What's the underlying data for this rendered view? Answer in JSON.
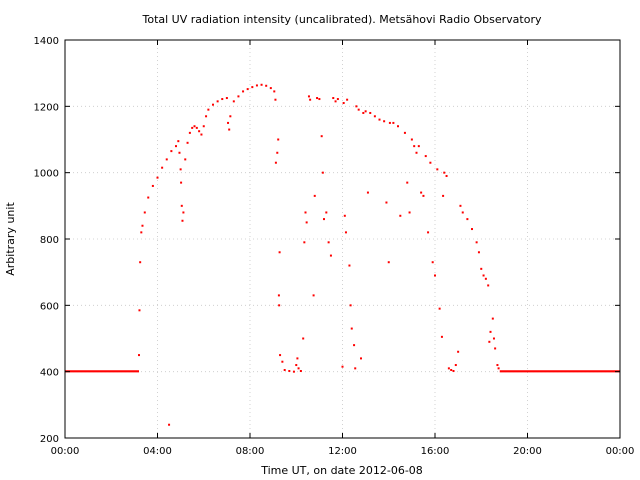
{
  "chart_data": {
    "type": "scatter",
    "title": "Total UV radiation intensity (uncalibrated). Metsähovi Radio Observatory",
    "xlabel": "Time UT, on date 2012-06-08",
    "ylabel": "Arbitrary unit",
    "xlim": [
      0,
      24
    ],
    "ylim": [
      200,
      1400
    ],
    "x_unit": "hours UT",
    "x_ticks": [
      0,
      4,
      8,
      12,
      16,
      20,
      24
    ],
    "x_tick_labels": [
      "00:00",
      "04:00",
      "08:00",
      "12:00",
      "16:00",
      "20:00",
      "00:00"
    ],
    "y_ticks": [
      200,
      400,
      600,
      800,
      1000,
      1200,
      1400
    ],
    "y_tick_labels": [
      "200",
      "400",
      "600",
      "800",
      "1000",
      "1200",
      "1400"
    ],
    "grid": true,
    "color": "#ff0000",
    "series": [
      {
        "points": [
          [
            3.2,
            450
          ],
          [
            3.22,
            585
          ],
          [
            3.25,
            730
          ],
          [
            3.3,
            820
          ],
          [
            3.35,
            840
          ],
          [
            3.45,
            880
          ],
          [
            3.6,
            925
          ],
          [
            3.8,
            960
          ],
          [
            4.0,
            985
          ],
          [
            4.2,
            1015
          ],
          [
            4.4,
            1040
          ],
          [
            4.6,
            1065
          ],
          [
            4.8,
            1080
          ],
          [
            4.9,
            1095
          ],
          [
            4.95,
            1060
          ],
          [
            5.0,
            1010
          ],
          [
            5.02,
            970
          ],
          [
            5.05,
            900
          ],
          [
            5.08,
            855
          ],
          [
            5.12,
            880
          ],
          [
            5.2,
            1040
          ],
          [
            5.3,
            1090
          ],
          [
            5.4,
            1120
          ],
          [
            5.5,
            1135
          ],
          [
            5.6,
            1140
          ],
          [
            5.7,
            1135
          ],
          [
            5.8,
            1125
          ],
          [
            5.9,
            1115
          ],
          [
            6.0,
            1140
          ],
          [
            6.1,
            1170
          ],
          [
            6.2,
            1190
          ],
          [
            6.4,
            1205
          ],
          [
            6.6,
            1215
          ],
          [
            6.8,
            1222
          ],
          [
            7.0,
            1225
          ],
          [
            7.05,
            1150
          ],
          [
            7.1,
            1130
          ],
          [
            7.15,
            1170
          ],
          [
            7.3,
            1215
          ],
          [
            7.5,
            1230
          ],
          [
            7.7,
            1245
          ],
          [
            7.9,
            1252
          ],
          [
            8.1,
            1258
          ],
          [
            8.3,
            1263
          ],
          [
            8.5,
            1265
          ],
          [
            8.7,
            1262
          ],
          [
            8.9,
            1255
          ],
          [
            9.05,
            1245
          ],
          [
            9.1,
            1220
          ],
          [
            9.12,
            1030
          ],
          [
            9.18,
            1060
          ],
          [
            9.22,
            1100
          ],
          [
            9.28,
            760
          ],
          [
            9.25,
            630
          ],
          [
            9.26,
            600
          ],
          [
            9.3,
            450
          ],
          [
            9.4,
            430
          ],
          [
            9.5,
            405
          ],
          [
            9.7,
            402
          ],
          [
            9.9,
            400
          ],
          [
            10.0,
            420
          ],
          [
            10.05,
            440
          ],
          [
            10.1,
            410
          ],
          [
            10.2,
            402
          ],
          [
            10.3,
            500
          ],
          [
            10.35,
            790
          ],
          [
            10.4,
            880
          ],
          [
            10.45,
            850
          ],
          [
            10.55,
            1230
          ],
          [
            10.6,
            1220
          ],
          [
            10.75,
            630
          ],
          [
            10.8,
            930
          ],
          [
            10.9,
            1225
          ],
          [
            11.0,
            1222
          ],
          [
            11.1,
            1110
          ],
          [
            11.15,
            1000
          ],
          [
            11.2,
            860
          ],
          [
            11.3,
            880
          ],
          [
            11.4,
            790
          ],
          [
            11.5,
            750
          ],
          [
            11.6,
            1225
          ],
          [
            11.7,
            1215
          ],
          [
            11.8,
            1222
          ],
          [
            12.0,
            415
          ],
          [
            12.05,
            1210
          ],
          [
            12.1,
            870
          ],
          [
            12.15,
            820
          ],
          [
            12.2,
            1220
          ],
          [
            12.3,
            720
          ],
          [
            12.35,
            600
          ],
          [
            12.4,
            530
          ],
          [
            12.5,
            480
          ],
          [
            12.55,
            410
          ],
          [
            12.6,
            1200
          ],
          [
            12.7,
            1190
          ],
          [
            12.8,
            440
          ],
          [
            12.9,
            1180
          ],
          [
            13.0,
            1185
          ],
          [
            13.1,
            940
          ],
          [
            13.2,
            1180
          ],
          [
            13.4,
            1170
          ],
          [
            13.6,
            1160
          ],
          [
            13.8,
            1155
          ],
          [
            13.9,
            910
          ],
          [
            14.0,
            730
          ],
          [
            14.05,
            1150
          ],
          [
            14.2,
            1150
          ],
          [
            14.4,
            1140
          ],
          [
            14.5,
            870
          ],
          [
            14.7,
            1120
          ],
          [
            14.8,
            970
          ],
          [
            14.9,
            880
          ],
          [
            15.0,
            1100
          ],
          [
            15.1,
            1080
          ],
          [
            15.2,
            1060
          ],
          [
            15.3,
            1080
          ],
          [
            15.4,
            940
          ],
          [
            15.5,
            930
          ],
          [
            15.6,
            1050
          ],
          [
            15.7,
            820
          ],
          [
            15.8,
            1030
          ],
          [
            15.9,
            730
          ],
          [
            16.0,
            690
          ],
          [
            16.1,
            1010
          ],
          [
            16.2,
            590
          ],
          [
            16.3,
            505
          ],
          [
            16.35,
            930
          ],
          [
            16.4,
            1000
          ],
          [
            16.5,
            990
          ],
          [
            16.6,
            410
          ],
          [
            16.7,
            405
          ],
          [
            16.8,
            402
          ],
          [
            16.9,
            420
          ],
          [
            17.0,
            460
          ],
          [
            17.1,
            900
          ],
          [
            17.2,
            880
          ],
          [
            17.4,
            860
          ],
          [
            17.6,
            830
          ],
          [
            17.8,
            790
          ],
          [
            17.9,
            760
          ],
          [
            18.0,
            710
          ],
          [
            18.1,
            690
          ],
          [
            18.2,
            680
          ],
          [
            18.3,
            660
          ],
          [
            18.35,
            490
          ],
          [
            18.4,
            520
          ],
          [
            18.5,
            560
          ],
          [
            18.55,
            500
          ],
          [
            18.6,
            470
          ],
          [
            18.7,
            420
          ],
          [
            18.75,
            410
          ],
          [
            4.5,
            240
          ]
        ],
        "baseline_segments": [
          {
            "x_start": 0,
            "x_end": 3.2,
            "y": 401
          },
          {
            "x_start": 18.8,
            "x_end": 24,
            "y": 401
          }
        ]
      }
    ]
  }
}
